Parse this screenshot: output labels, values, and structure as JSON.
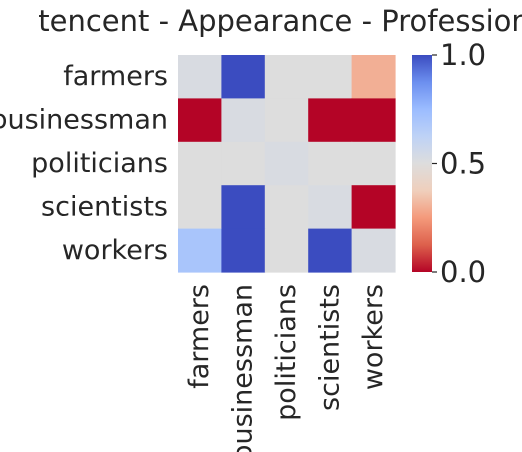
{
  "chart_data": {
    "type": "heatmap",
    "title": "tencent - Appearance - Profession",
    "x_labels": [
      "farmers",
      "businessman",
      "politicians",
      "scientists",
      "workers"
    ],
    "y_labels": [
      "farmers",
      "businessman",
      "politicians",
      "scientists",
      "workers"
    ],
    "values": [
      [
        0.52,
        1.0,
        0.5,
        0.5,
        0.3
      ],
      [
        0.0,
        0.52,
        0.5,
        0.0,
        0.0
      ],
      [
        0.5,
        0.5,
        0.52,
        0.5,
        0.5
      ],
      [
        0.5,
        1.0,
        0.5,
        0.52,
        0.0
      ],
      [
        0.7,
        1.0,
        0.5,
        1.0,
        0.52
      ]
    ],
    "colormap": "coolwarm_r",
    "vmin": 0.0,
    "vmax": 1.0,
    "colorbar": {
      "ticks": [
        0.0,
        0.5,
        1.0
      ],
      "tick_labels": [
        "0.0",
        "0.5",
        "1.0"
      ]
    }
  }
}
